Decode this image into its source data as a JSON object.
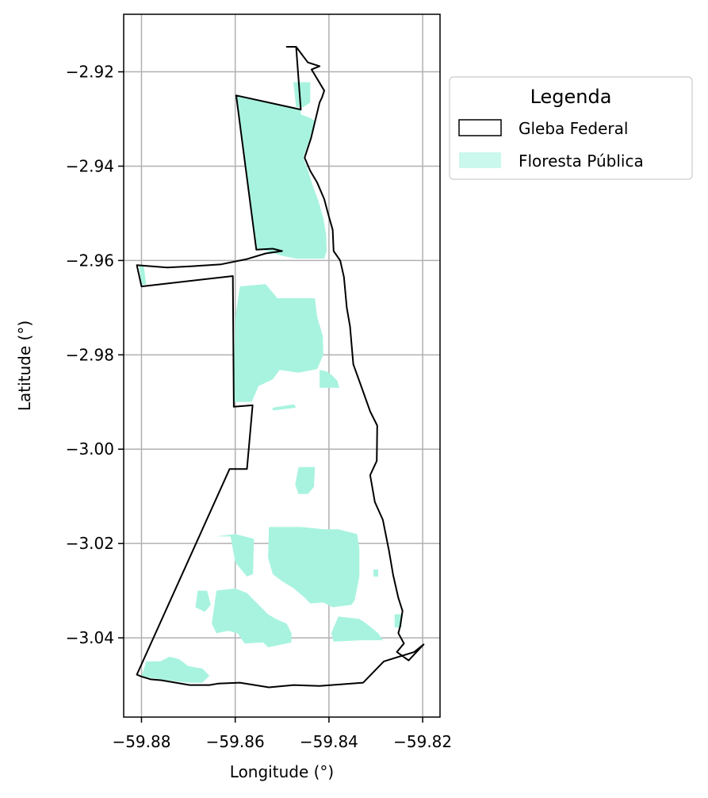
{
  "chart_data": {
    "type": "map",
    "xlabel": "Longitude (°)",
    "ylabel": "Latitude (°)",
    "xlim": [
      -59.8838,
      -59.8163
    ],
    "ylim": [
      -3.0568,
      -2.9078
    ],
    "grid": true,
    "xticks": [
      -59.88,
      -59.86,
      -59.84,
      -59.82
    ],
    "xtick_labels": [
      "−59.88",
      "−59.86",
      "−59.84",
      "−59.82"
    ],
    "yticks": [
      -2.92,
      -2.94,
      -2.96,
      -2.98,
      -3.0,
      -3.02,
      -3.04
    ],
    "ytick_labels": [
      "−2.92",
      "−2.94",
      "−2.96",
      "−2.98",
      "−3.00",
      "−3.02",
      "−3.04"
    ],
    "legend": {
      "title": "Legenda",
      "placement": "outside upper right",
      "entries": [
        {
          "label": "Gleba Federal",
          "style": "outline",
          "edge_color": "#000000",
          "fill": "none"
        },
        {
          "label": "Floresta Pública",
          "style": "fill",
          "fill": "#a8f3df"
        }
      ]
    },
    "colors": {
      "forest": "#a8f3df",
      "boundary": "#000000",
      "grid": "#b0b0b0"
    },
    "gleba_federal_boundary": [
      [
        -59.849,
        -2.9147
      ],
      [
        -59.847,
        -2.9147
      ],
      [
        -59.8445,
        -2.918
      ],
      [
        -59.842,
        -2.9188
      ],
      [
        -59.8437,
        -2.9195
      ],
      [
        -59.841,
        -2.924
      ],
      [
        -59.8415,
        -2.9255
      ],
      [
        -59.842,
        -2.9265
      ],
      [
        -59.8438,
        -2.934
      ],
      [
        -59.8452,
        -2.9382
      ],
      [
        -59.844,
        -2.941
      ],
      [
        -59.8425,
        -2.9435
      ],
      [
        -59.841,
        -2.947
      ],
      [
        -59.8402,
        -2.95
      ],
      [
        -59.8392,
        -2.9535
      ],
      [
        -59.839,
        -2.958
      ],
      [
        -59.8376,
        -2.96
      ],
      [
        -59.8368,
        -2.9635
      ],
      [
        -59.8362,
        -2.97
      ],
      [
        -59.8355,
        -2.974
      ],
      [
        -59.8348,
        -2.982
      ],
      [
        -59.833,
        -2.987
      ],
      [
        -59.8312,
        -2.992
      ],
      [
        -59.8297,
        -2.995
      ],
      [
        -59.8298,
        -3.0025
      ],
      [
        -59.8312,
        -3.0055
      ],
      [
        -59.8302,
        -3.0112
      ],
      [
        -59.8285,
        -3.015
      ],
      [
        -59.8272,
        -3.0215
      ],
      [
        -59.8263,
        -3.0267
      ],
      [
        -59.8252,
        -3.0315
      ],
      [
        -59.8243,
        -3.0343
      ],
      [
        -59.8248,
        -3.0375
      ],
      [
        -59.8252,
        -3.039
      ],
      [
        -59.824,
        -3.0412
      ],
      [
        -59.8255,
        -3.043
      ],
      [
        -59.823,
        -3.0448
      ],
      [
        -59.8198,
        -3.0414
      ],
      [
        -59.8218,
        -3.043
      ],
      [
        -59.8283,
        -3.045
      ],
      [
        -59.8327,
        -3.0495
      ],
      [
        -59.842,
        -3.0502
      ],
      [
        -59.8475,
        -3.05
      ],
      [
        -59.8528,
        -3.0505
      ],
      [
        -59.859,
        -3.0495
      ],
      [
        -59.8637,
        -3.0497
      ],
      [
        -59.8655,
        -3.05
      ],
      [
        -59.8697,
        -3.05
      ],
      [
        -59.8757,
        -3.049
      ],
      [
        -59.878,
        -3.0488
      ],
      [
        -59.88,
        -3.0482
      ],
      [
        -59.881,
        -3.0478
      ],
      [
        -59.8612,
        -3.0042
      ],
      [
        -59.8575,
        -3.0042
      ],
      [
        -59.8563,
        -2.9907
      ],
      [
        -59.8603,
        -2.991
      ],
      [
        -59.8605,
        -2.9633
      ],
      [
        -59.88,
        -2.9655
      ],
      [
        -59.881,
        -2.961
      ],
      [
        -59.8745,
        -2.9615
      ],
      [
        -59.8688,
        -2.9612
      ],
      [
        -59.863,
        -2.9608
      ],
      [
        -59.8575,
        -2.9597
      ],
      [
        -59.8535,
        -2.9585
      ],
      [
        -59.85,
        -2.958
      ],
      [
        -59.852,
        -2.9575
      ],
      [
        -59.8555,
        -2.9577
      ],
      [
        -59.8598,
        -2.925
      ],
      [
        -59.846,
        -2.928
      ],
      [
        -59.847,
        -2.9147
      ],
      [
        -59.849,
        -2.9147
      ]
    ],
    "floresta_publica_patches": [
      [
        [
          -59.8598,
          -2.925
        ],
        [
          -59.846,
          -2.928
        ],
        [
          -59.846,
          -2.929
        ],
        [
          -59.844,
          -2.9298
        ],
        [
          -59.8428,
          -2.9305
        ],
        [
          -59.844,
          -2.934
        ],
        [
          -59.8455,
          -2.9382
        ],
        [
          -59.8445,
          -2.9408
        ],
        [
          -59.8435,
          -2.944
        ],
        [
          -59.8422,
          -2.9475
        ],
        [
          -59.8412,
          -2.951
        ],
        [
          -59.8406,
          -2.9545
        ],
        [
          -59.8405,
          -2.958
        ],
        [
          -59.841,
          -2.9596
        ],
        [
          -59.847,
          -2.9596
        ],
        [
          -59.85,
          -2.959
        ],
        [
          -59.854,
          -2.9578
        ],
        [
          -59.8555,
          -2.9577
        ]
      ],
      [
        [
          -59.8476,
          -2.9222
        ],
        [
          -59.844,
          -2.9222
        ],
        [
          -59.844,
          -2.9265
        ],
        [
          -59.8455,
          -2.9275
        ],
        [
          -59.847,
          -2.9275
        ]
      ],
      [
        [
          -59.8392,
          -2.9575
        ],
        [
          -59.8376,
          -2.96
        ],
        [
          -59.8368,
          -2.963
        ],
        [
          -59.8375,
          -2.9605
        ]
      ],
      [
        [
          -59.8805,
          -2.9612
        ],
        [
          -59.8795,
          -2.9612
        ],
        [
          -59.879,
          -2.965
        ],
        [
          -59.88,
          -2.9652
        ]
      ],
      [
        [
          -59.859,
          -2.9655
        ],
        [
          -59.8535,
          -2.965
        ],
        [
          -59.851,
          -2.968
        ],
        [
          -59.843,
          -2.968
        ],
        [
          -59.8425,
          -2.972
        ],
        [
          -59.8413,
          -2.976
        ],
        [
          -59.8412,
          -2.98
        ],
        [
          -59.8425,
          -2.983
        ],
        [
          -59.8465,
          -2.9838
        ],
        [
          -59.8505,
          -2.9832
        ],
        [
          -59.852,
          -2.9852
        ],
        [
          -59.855,
          -2.9866
        ],
        [
          -59.8565,
          -2.99
        ],
        [
          -59.8602,
          -2.99
        ],
        [
          -59.8602,
          -2.98
        ],
        [
          -59.86,
          -2.972
        ]
      ],
      [
        [
          -59.842,
          -2.9832
        ],
        [
          -59.8405,
          -2.9835
        ],
        [
          -59.8395,
          -2.9842
        ],
        [
          -59.8382,
          -2.9855
        ],
        [
          -59.8378,
          -2.987
        ],
        [
          -59.842,
          -2.987
        ]
      ],
      [
        [
          -59.852,
          -2.9912
        ],
        [
          -59.8475,
          -2.9905
        ],
        [
          -59.847,
          -2.9912
        ],
        [
          -59.852,
          -2.9918
        ]
      ],
      [
        [
          -59.8465,
          -3.0038
        ],
        [
          -59.843,
          -3.0038
        ],
        [
          -59.8432,
          -3.008
        ],
        [
          -59.8445,
          -3.0095
        ],
        [
          -59.8465,
          -3.0095
        ],
        [
          -59.8472,
          -3.0075
        ]
      ],
      [
        [
          -59.8528,
          -3.0165
        ],
        [
          -59.846,
          -3.0165
        ],
        [
          -59.841,
          -3.017
        ],
        [
          -59.838,
          -3.017
        ],
        [
          -59.834,
          -3.018
        ],
        [
          -59.8335,
          -3.021
        ],
        [
          -59.8335,
          -3.027
        ],
        [
          -59.8345,
          -3.032
        ],
        [
          -59.8352,
          -3.033
        ],
        [
          -59.8392,
          -3.0335
        ],
        [
          -59.8412,
          -3.0325
        ],
        [
          -59.844,
          -3.0327
        ],
        [
          -59.8455,
          -3.0312
        ],
        [
          -59.8475,
          -3.0295
        ],
        [
          -59.85,
          -3.028
        ],
        [
          -59.852,
          -3.0265
        ],
        [
          -59.853,
          -3.023
        ]
      ],
      [
        [
          -59.864,
          -3.0185
        ],
        [
          -59.861,
          -3.0185
        ],
        [
          -59.86,
          -3.024
        ],
        [
          -59.8575,
          -3.027
        ],
        [
          -59.8562,
          -3.0265
        ],
        [
          -59.856,
          -3.019
        ],
        [
          -59.86,
          -3.018
        ]
      ],
      [
        [
          -59.86,
          -3.0295
        ],
        [
          -59.8575,
          -3.0305
        ],
        [
          -59.855,
          -3.033
        ],
        [
          -59.853,
          -3.035
        ],
        [
          -59.8513,
          -3.036
        ],
        [
          -59.849,
          -3.037
        ],
        [
          -59.848,
          -3.039
        ],
        [
          -59.848,
          -3.041
        ],
        [
          -59.853,
          -3.042
        ],
        [
          -59.854,
          -3.041
        ],
        [
          -59.858,
          -3.0412
        ],
        [
          -59.8595,
          -3.039
        ],
        [
          -59.8615,
          -3.0385
        ],
        [
          -59.864,
          -3.039
        ],
        [
          -59.865,
          -3.037
        ],
        [
          -59.864,
          -3.03
        ]
      ],
      [
        [
          -59.838,
          -3.0355
        ],
        [
          -59.8335,
          -3.036
        ],
        [
          -59.832,
          -3.037
        ],
        [
          -59.8295,
          -3.039
        ],
        [
          -59.8285,
          -3.0405
        ],
        [
          -59.833,
          -3.0405
        ],
        [
          -59.839,
          -3.0408
        ],
        [
          -59.8395,
          -3.039
        ]
      ],
      [
        [
          -59.879,
          -3.045
        ],
        [
          -59.876,
          -3.045
        ],
        [
          -59.874,
          -3.044
        ],
        [
          -59.872,
          -3.0445
        ],
        [
          -59.87,
          -3.046
        ],
        [
          -59.867,
          -3.0465
        ],
        [
          -59.8655,
          -3.048
        ],
        [
          -59.867,
          -3.0495
        ],
        [
          -59.87,
          -3.0495
        ],
        [
          -59.8745,
          -3.049
        ],
        [
          -59.88,
          -3.0482
        ]
      ],
      [
        [
          -59.868,
          -3.03
        ],
        [
          -59.866,
          -3.03
        ],
        [
          -59.8652,
          -3.033
        ],
        [
          -59.8665,
          -3.0345
        ],
        [
          -59.8685,
          -3.0335
        ]
      ],
      [
        [
          -59.826,
          -3.035
        ],
        [
          -59.8245,
          -3.035
        ],
        [
          -59.8245,
          -3.0378
        ],
        [
          -59.826,
          -3.0378
        ]
      ],
      [
        [
          -59.8305,
          -3.0255
        ],
        [
          -59.8295,
          -3.0255
        ],
        [
          -59.8295,
          -3.027
        ],
        [
          -59.8305,
          -3.027
        ]
      ]
    ]
  }
}
